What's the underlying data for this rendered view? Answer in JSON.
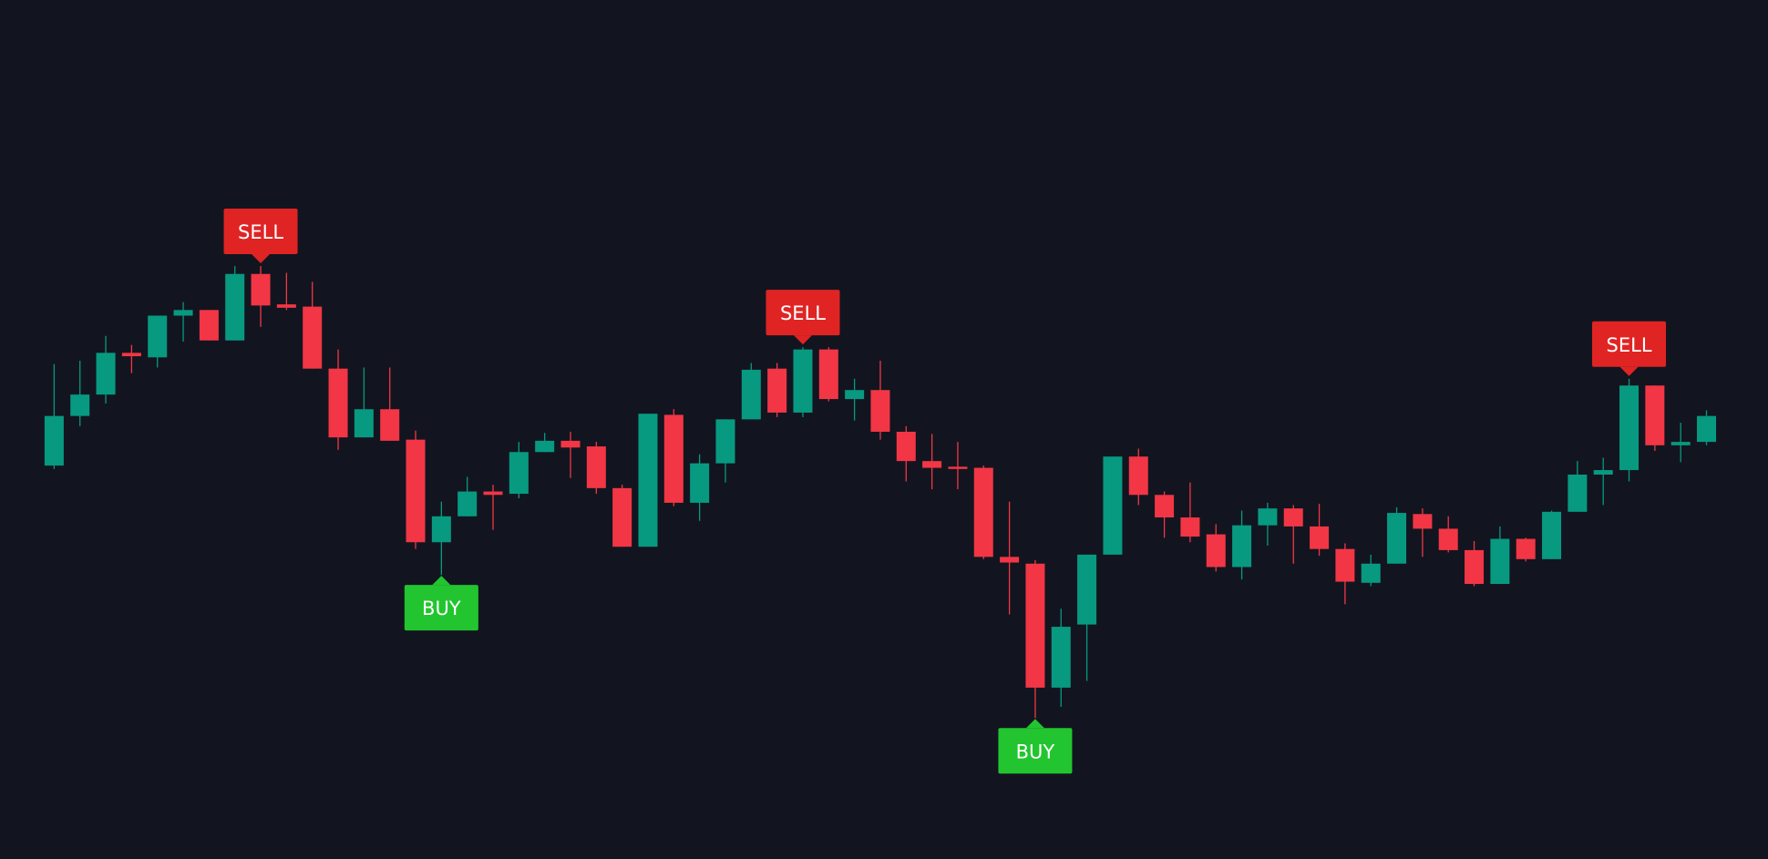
{
  "chart_data": {
    "type": "candlestick",
    "up_color": "#089981",
    "down_color": "#f23645",
    "background": "#12151f",
    "ylim": [
      0,
      762
    ],
    "open": [
      349,
      393,
      412,
      449,
      445,
      482,
      487,
      460,
      519,
      492,
      490,
      435,
      374,
      399,
      372,
      281,
      304,
      326,
      324,
      361,
      371,
      366,
      329,
      277,
      394,
      316,
      351,
      390,
      435,
      396,
      452,
      408,
      416,
      379,
      353,
      348,
      347,
      268,
      262,
      152,
      208,
      270,
      357,
      323,
      303,
      288,
      259,
      296,
      311,
      295,
      275,
      245,
      262,
      306,
      293,
      274,
      244,
      284,
      266,
      308,
      341,
      345,
      420,
      367,
      370
    ],
    "high": [
      439,
      442,
      464,
      456,
      482,
      494,
      487,
      526,
      526,
      520,
      512,
      452,
      436,
      436,
      380,
      317,
      339,
      332,
      370,
      378,
      379,
      370,
      332,
      395,
      399,
      359,
      390,
      440,
      440,
      454,
      454,
      426,
      442,
      384,
      377,
      370,
      349,
      317,
      265,
      222,
      270,
      357,
      364,
      326,
      334,
      297,
      309,
      316,
      314,
      315,
      280,
      270,
      312,
      311,
      304,
      282,
      295,
      285,
      309,
      353,
      356,
      426,
      420,
      387,
      398
    ],
    "low": [
      346,
      384,
      404,
      431,
      436,
      459,
      460,
      460,
      472,
      487,
      435,
      363,
      374,
      371,
      275,
      252,
      304,
      292,
      320,
      361,
      338,
      324,
      277,
      277,
      313,
      300,
      334,
      390,
      392,
      392,
      406,
      389,
      372,
      335,
      328,
      328,
      266,
      217,
      125,
      135,
      158,
      270,
      314,
      285,
      281,
      255,
      248,
      278,
      262,
      269,
      226,
      242,
      262,
      268,
      272,
      242,
      244,
      264,
      266,
      308,
      314,
      335,
      362,
      352,
      367
    ],
    "close": [
      393,
      412,
      449,
      446,
      482,
      487,
      460,
      519,
      491,
      489,
      435,
      374,
      399,
      371,
      281,
      304,
      326,
      323,
      361,
      371,
      365,
      329,
      277,
      395,
      316,
      351,
      390,
      434,
      396,
      452,
      408,
      416,
      379,
      353,
      347,
      347,
      268,
      263,
      152,
      206,
      270,
      357,
      323,
      303,
      286,
      259,
      296,
      311,
      295,
      275,
      246,
      262,
      307,
      293,
      274,
      244,
      284,
      266,
      308,
      341,
      345,
      420,
      367,
      370,
      393
    ],
    "signals": [
      null,
      null,
      null,
      null,
      null,
      null,
      null,
      null,
      {
        "label": "SELL",
        "color": "#e02424",
        "placement": "above"
      },
      null,
      null,
      null,
      null,
      null,
      null,
      {
        "label": "BUY",
        "color": "#22c52f",
        "placement": "below"
      },
      null,
      null,
      null,
      null,
      null,
      null,
      null,
      null,
      null,
      null,
      null,
      null,
      null,
      {
        "label": "SELL",
        "color": "#e02424",
        "placement": "above"
      },
      null,
      null,
      null,
      null,
      null,
      null,
      null,
      null,
      {
        "label": "BUY",
        "color": "#22c52f",
        "placement": "below"
      },
      null,
      null,
      null,
      null,
      null,
      null,
      null,
      null,
      null,
      null,
      null,
      null,
      null,
      null,
      null,
      null,
      null,
      null,
      null,
      null,
      null,
      null,
      {
        "label": "SELL",
        "color": "#e02424",
        "placement": "above"
      },
      null,
      null,
      null
    ]
  }
}
